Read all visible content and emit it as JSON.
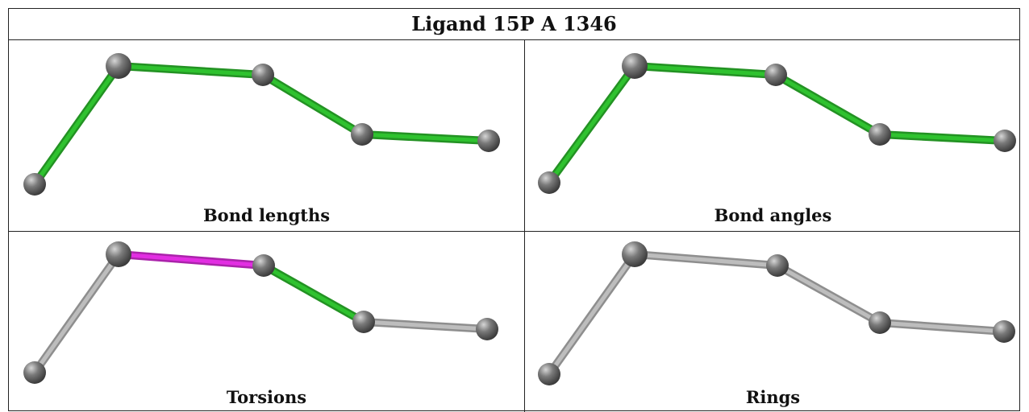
{
  "title": "Ligand 15P A 1346",
  "colors": {
    "ok": "#2fc22f",
    "outlier": "#e22ee2",
    "neutral": "#bdbdbd",
    "atom": "#7a7a7a"
  },
  "panels": [
    {
      "caption": "Bond lengths",
      "bonds": [
        "ok",
        "ok",
        "ok",
        "ok"
      ]
    },
    {
      "caption": "Bond angles",
      "bonds": [
        "ok",
        "ok",
        "ok",
        "ok"
      ]
    },
    {
      "caption": "Torsions",
      "bonds": [
        "neutral",
        "outlier",
        "ok",
        "neutral"
      ]
    },
    {
      "caption": "Rings",
      "bonds": [
        "neutral",
        "neutral",
        "neutral",
        "neutral"
      ]
    }
  ]
}
